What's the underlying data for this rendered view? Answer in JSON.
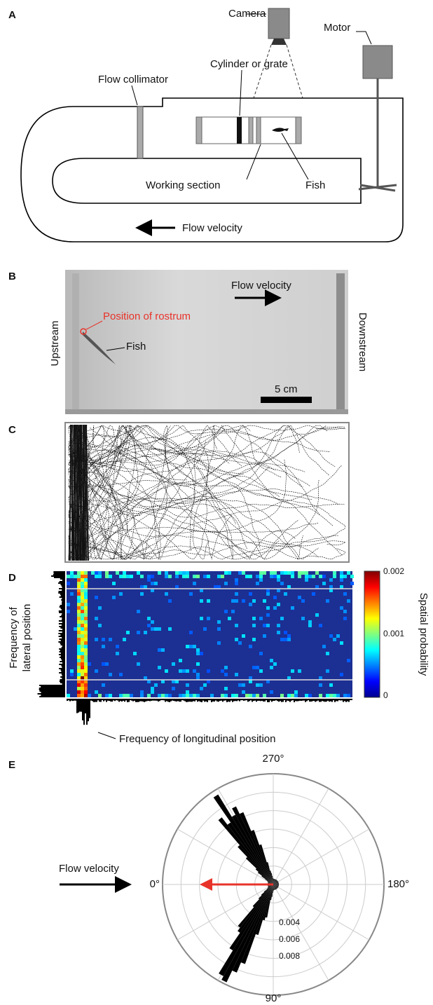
{
  "panels": {
    "a": {
      "label": "A",
      "camera": "Camera",
      "motor": "Motor",
      "flow_collimator": "Flow collimator",
      "cylinder": "Cylinder or grate",
      "working_section": "Working section",
      "fish": "Fish",
      "flow_velocity": "Flow velocity"
    },
    "b": {
      "label": "B",
      "flow_velocity": "Flow velocity",
      "position_of_rostrum": "Position of rostrum",
      "fish": "Fish",
      "upstream": "Upstream",
      "downstream": "Downstream",
      "scale_bar": "5 cm"
    },
    "c": {
      "label": "C"
    },
    "d": {
      "label": "D",
      "colorbar_ticks": [
        "0.002",
        "0.001",
        "0"
      ],
      "colorbar_label": "Spatial probability",
      "lateral_label": [
        "Frequency of",
        "lateral position"
      ],
      "longitudinal_label": "Frequency of longitudinal position"
    },
    "e": {
      "label": "E",
      "angle_top": "270°",
      "angle_right": "180°",
      "angle_left": "0°",
      "angle_bottom": "90°",
      "radial_ticks": [
        "0.004",
        "0.006",
        "0.008"
      ],
      "flow_velocity": "Flow velocity"
    }
  }
}
